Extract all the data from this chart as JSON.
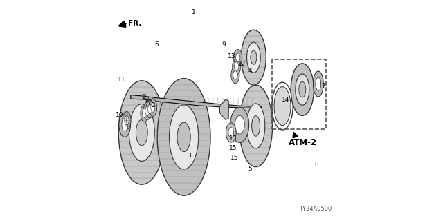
{
  "bg_color": "#ffffff",
  "line_color": "#000000",
  "gear_fill": "#d0d0d0",
  "gear_edge": "#333333",
  "dash_color": "#555555",
  "atm2_color": "#000000",
  "title_code": "TY24A0500",
  "fr_label": "FR.",
  "atm_label": "ATM-2",
  "figsize": [
    6.4,
    3.2
  ],
  "dpi": 100
}
